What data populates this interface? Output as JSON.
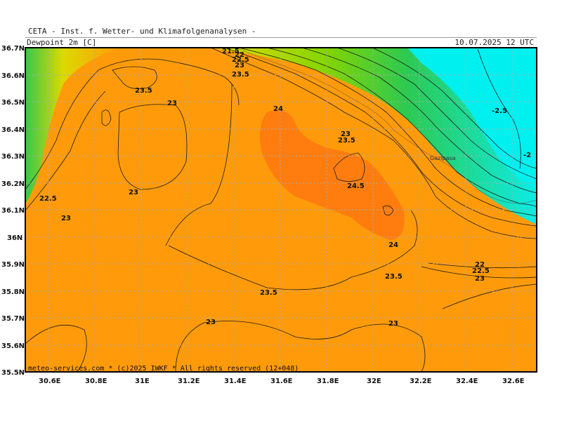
{
  "header": {
    "institute": "CETA - Inst. f. Wetter- und Klimafolgenanalysen -",
    "title": "Dewpoint 2m [C]",
    "datetime": "10.07.2025 12 UTC"
  },
  "map": {
    "latitudes": [
      "36.7N",
      "36.6N",
      "36.5N",
      "36.4N",
      "36.3N",
      "36.2N",
      "36.1N",
      "36N",
      "35.9N",
      "35.8N",
      "35.7N",
      "35.6N",
      "35.5N"
    ],
    "longitudes": [
      "30.6E",
      "30.8E",
      "31E",
      "31.2E",
      "31.4E",
      "31.6E",
      "31.8E",
      "32E",
      "32.2E",
      "32.4E",
      "32.6E"
    ],
    "colors": {
      "land": "#ff9b0b",
      "high": "#ff7d0f",
      "sea_cyan": "#00f0f0",
      "green": "#22cc55",
      "yellow": "#e8e000"
    },
    "place_name": "Gazipasa",
    "contour_labels": [
      "21.5",
      "22",
      "22.5",
      "23",
      "23.5",
      "23",
      "23.5",
      "24",
      "23",
      "23.5",
      "24.5",
      "24",
      "22.5",
      "23",
      "23",
      "23.5",
      "22",
      "22.5",
      "23",
      "23.5",
      "23",
      "23",
      "-2.5",
      "-2"
    ],
    "credit": "meteo-services.com * (c)2025 IWKF * All rights reserved (12+048)"
  }
}
